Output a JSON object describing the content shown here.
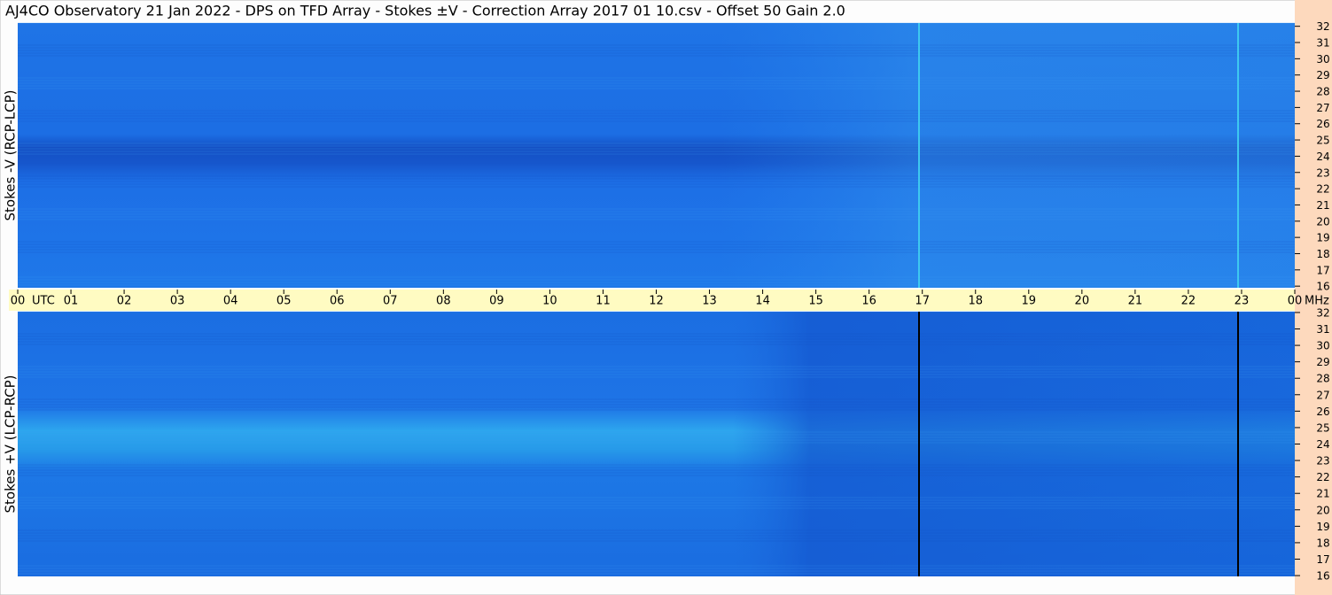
{
  "chart_data": [
    {
      "type": "heatmap",
      "title": "AJ4CO Observatory  21 Jan 2022  -  DPS on TFD Array  -  Stokes ±V  -  Correction Array 2017 01 10.csv  -  Offset 50  Gain 2.0",
      "ylabel": "Stokes -V (RCP-LCP)",
      "xlabel": "UTC",
      "y_unit": "MHz",
      "xlim": [
        0,
        24
      ],
      "xticks": [
        {
          "value": 0,
          "label": "00"
        },
        {
          "value": 1,
          "label": "01"
        },
        {
          "value": 2,
          "label": "02"
        },
        {
          "value": 3,
          "label": "03"
        },
        {
          "value": 4,
          "label": "04"
        },
        {
          "value": 5,
          "label": "05"
        },
        {
          "value": 6,
          "label": "06"
        },
        {
          "value": 7,
          "label": "07"
        },
        {
          "value": 8,
          "label": "08"
        },
        {
          "value": 9,
          "label": "09"
        },
        10,
        11,
        12,
        13,
        14,
        15,
        16,
        17,
        18,
        19,
        20,
        21,
        22,
        23,
        {
          "value": 24,
          "label": "00"
        }
      ],
      "ylim": [
        15.9,
        32.2
      ],
      "yticks": [
        16,
        17,
        18,
        19,
        20,
        21,
        22,
        23,
        24,
        25,
        26,
        27,
        28,
        29,
        30,
        31,
        32
      ]
    },
    {
      "type": "heatmap",
      "ylabel": "Stokes +V (LCP-RCP)",
      "xlim": [
        0,
        24
      ],
      "ylim": [
        15.95,
        32.05
      ],
      "yticks": [
        16,
        17,
        18,
        19,
        20,
        21,
        22,
        23,
        24,
        25,
        26,
        27,
        28,
        29,
        30,
        31,
        32
      ]
    }
  ]
}
